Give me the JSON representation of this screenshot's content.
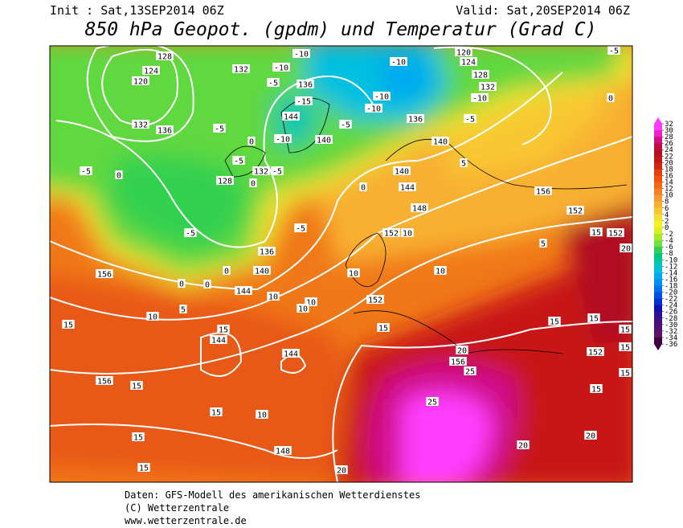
{
  "header": {
    "init": "Init : Sat,13SEP2014 06Z",
    "valid": "Valid: Sat,20SEP2014 06Z",
    "title": "850 hPa Geopot. (gpdm) und Temperatur (Grad C)"
  },
  "footer": [
    "Daten: GFS-Modell des amerikanischen Wetterdienstes",
    "(C) Wetterzentrale",
    "www.wetterzentrale.de"
  ],
  "colorbar": {
    "ticks": [
      32,
      30,
      28,
      26,
      24,
      22,
      20,
      18,
      16,
      14,
      12,
      10,
      8,
      6,
      4,
      2,
      0,
      -2,
      -4,
      -6,
      -8,
      -10,
      -12,
      -14,
      -16,
      -18,
      -20,
      -22,
      -24,
      -26,
      -28,
      -30,
      -32,
      -34,
      -36
    ],
    "colors": [
      "#ff3cff",
      "#f020c8",
      "#d0108a",
      "#c00a4a",
      "#b01020",
      "#c01818",
      "#d02810",
      "#e04010",
      "#f05010",
      "#f06818",
      "#f88020",
      "#f89830",
      "#f8b030",
      "#f8c830",
      "#f0e030",
      "#f8f020",
      "#d8f020",
      "#a8e828",
      "#70e040",
      "#30d050",
      "#00c880",
      "#00c8b0",
      "#00c0e0",
      "#00a8f0",
      "#0090f0",
      "#0070f0",
      "#0050e0",
      "#0030d0",
      "#1010b0",
      "#301090",
      "#401080",
      "#501070",
      "#601068",
      "#400040"
    ]
  },
  "map": {
    "labels": [
      "128",
      "124",
      "120",
      "132",
      "136",
      "132",
      "-10",
      "-10",
      "-5",
      "136",
      "-15",
      "144",
      "-10",
      "140",
      "-5",
      "-5",
      "0",
      "128",
      "132",
      "-5",
      "0",
      "0",
      "-5",
      "-5",
      "-10",
      "-10",
      "-10",
      "-5",
      "136",
      "120",
      "124",
      "128",
      "132",
      "-10",
      "-5",
      "-5",
      "0",
      "140",
      "140",
      "144",
      "0",
      "5",
      "148",
      "152",
      "10",
      "156",
      "152",
      "5",
      "15",
      "152",
      "20",
      "-5",
      "136",
      "140",
      "0",
      "144",
      "10",
      "0",
      "0",
      "5",
      "10",
      "156",
      "10",
      "10",
      "10",
      "10",
      "152",
      "15",
      "15",
      "15",
      "144",
      "144",
      "20",
      "156",
      "25",
      "15",
      "15",
      "15",
      "15",
      "152",
      "15",
      "15",
      "156",
      "15",
      "15",
      "10",
      "25",
      "15",
      "148",
      "20",
      "20",
      "15",
      "20"
    ]
  }
}
